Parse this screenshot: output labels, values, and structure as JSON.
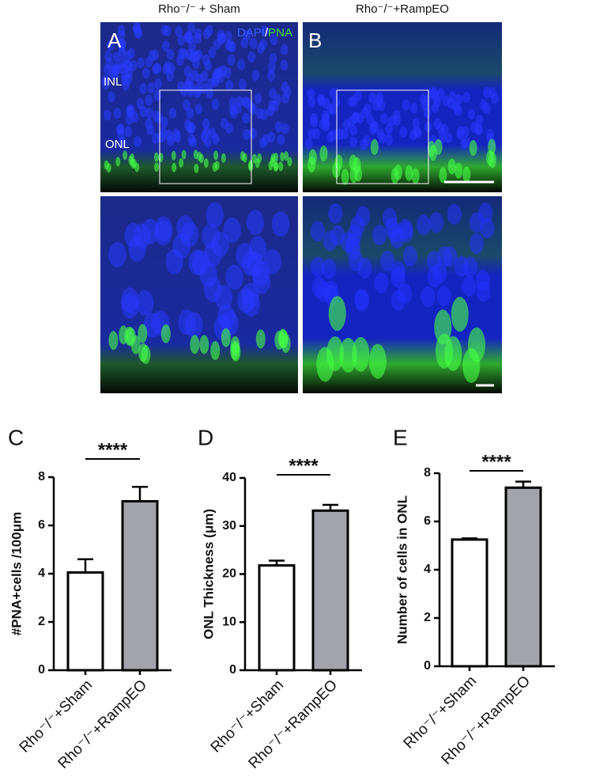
{
  "images": {
    "column_titles": [
      "Rho⁻/⁻ + Sham",
      "Rho⁻/⁻+RampEO"
    ],
    "panel_letters": [
      "A",
      "B"
    ],
    "stain": {
      "dapi": "DAPI",
      "separator": "/",
      "pna": "PNA"
    },
    "layers": [
      "INL",
      "ONL"
    ]
  },
  "chart_data": [
    {
      "type": "bar",
      "panel": "C",
      "ylabel": "#PNA+cells /100μm",
      "categories": [
        "Rho⁻/⁻+Sham",
        "Rho⁻/⁻+RampEO"
      ],
      "values": [
        4.05,
        7.0
      ],
      "errors": [
        0.55,
        0.6
      ],
      "colors": [
        "#ffffff",
        "#a3a3ab"
      ],
      "ylim": [
        0,
        8
      ],
      "yticks": [
        0,
        2,
        4,
        6,
        8
      ],
      "significance": "****"
    },
    {
      "type": "bar",
      "panel": "D",
      "ylabel": "ONL Thickness (μm)",
      "categories": [
        "Rho⁻/⁻+Sham",
        "Rho⁻/⁻+RampEO"
      ],
      "values": [
        21.8,
        33.2
      ],
      "errors": [
        1.0,
        1.2
      ],
      "colors": [
        "#ffffff",
        "#a3a3ab"
      ],
      "ylim": [
        0,
        40
      ],
      "yticks": [
        0,
        10,
        20,
        30,
        40
      ],
      "significance": "****"
    },
    {
      "type": "bar",
      "panel": "E",
      "ylabel": "Number of cells in ONL",
      "categories": [
        "Rho⁻/⁻+Sham",
        "Rho⁻/⁻+RampEO"
      ],
      "values": [
        5.25,
        7.4
      ],
      "errors": [
        0.05,
        0.25
      ],
      "colors": [
        "#ffffff",
        "#a3a3ab"
      ],
      "ylim": [
        0,
        8
      ],
      "yticks": [
        0,
        2,
        4,
        6,
        8
      ],
      "significance": "****"
    }
  ]
}
